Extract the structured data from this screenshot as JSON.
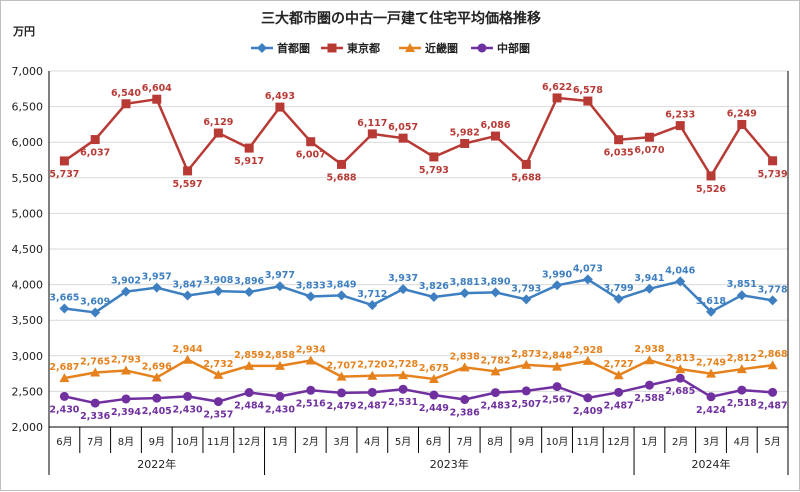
{
  "chart_data": {
    "type": "line",
    "title": "三大都市圏の中古一戸建て住宅平均価格推移",
    "ylabel": "万円",
    "ylim": [
      2000,
      7000
    ],
    "ytick_step": 500,
    "yticks": [
      "2,000",
      "2,500",
      "3,000",
      "3,500",
      "4,000",
      "4,500",
      "5,000",
      "5,500",
      "6,000",
      "6,500",
      "7,000"
    ],
    "grid": true,
    "legend_position": "top",
    "categories": [
      "6月",
      "7月",
      "8月",
      "9月",
      "10月",
      "11月",
      "12月",
      "1月",
      "2月",
      "3月",
      "4月",
      "5月",
      "6月",
      "7月",
      "8月",
      "9月",
      "10月",
      "11月",
      "12月",
      "1月",
      "2月",
      "3月",
      "4月",
      "5月"
    ],
    "year_groups": [
      {
        "label": "2022年",
        "start": 0,
        "end": 6
      },
      {
        "label": "2023年",
        "start": 7,
        "end": 18
      },
      {
        "label": "2024年",
        "start": 19,
        "end": 23
      }
    ],
    "series": [
      {
        "name": "首都圏",
        "color": "#3d7fc1",
        "marker": "diamond",
        "label_pos": "above",
        "values": [
          3665,
          3609,
          3902,
          3957,
          3847,
          3908,
          3896,
          3977,
          3833,
          3849,
          3712,
          3937,
          3826,
          3881,
          3890,
          3793,
          3990,
          4073,
          3799,
          3941,
          4046,
          3618,
          3851,
          3778
        ]
      },
      {
        "name": "東京都",
        "color": "#b83a35",
        "marker": "square",
        "label_pos": "alt",
        "values": [
          5737,
          6037,
          6540,
          6604,
          5597,
          6129,
          5917,
          6493,
          6007,
          5688,
          6117,
          6057,
          5793,
          5982,
          6086,
          5688,
          6622,
          6578,
          6035,
          6070,
          6233,
          5526,
          6249,
          5739
        ]
      },
      {
        "name": "近畿圏",
        "color": "#e6821e",
        "marker": "triangle",
        "label_pos": "above",
        "values": [
          2687,
          2765,
          2793,
          2696,
          2944,
          2732,
          2859,
          2858,
          2934,
          2707,
          2720,
          2728,
          2675,
          2838,
          2782,
          2873,
          2848,
          2928,
          2727,
          2938,
          2813,
          2749,
          2812,
          2868
        ]
      },
      {
        "name": "中部圏",
        "color": "#7030a0",
        "marker": "circle",
        "label_pos": "below",
        "values": [
          2430,
          2336,
          2394,
          2405,
          2430,
          2357,
          2484,
          2430,
          2516,
          2479,
          2487,
          2531,
          2449,
          2386,
          2483,
          2507,
          2567,
          2409,
          2487,
          2588,
          2685,
          2424,
          2518,
          2487
        ]
      }
    ]
  }
}
